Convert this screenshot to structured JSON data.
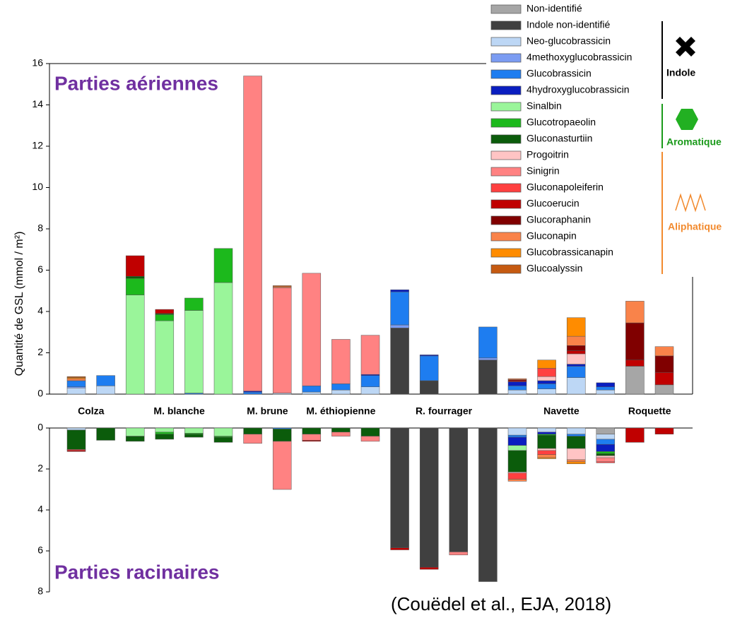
{
  "chart_data": {
    "type": "bar",
    "stacked": true,
    "ylabel": "Quantité de GSL (mmol / m²)",
    "annotations": [
      "Parties aériennes",
      "Parties racinaires",
      "(Couëdel et al., EJA, 2018)"
    ],
    "categories": [
      "Colza",
      null,
      "M. blanche",
      null,
      null,
      null,
      "M. brune",
      null,
      "M. éthiopienne",
      null,
      null,
      "R. fourrager",
      null,
      null,
      null,
      "Navette",
      null,
      null,
      null,
      "Roquette",
      null
    ],
    "ylim": [
      0,
      16
    ],
    "yticks": [
      0,
      2,
      4,
      6,
      8,
      10,
      12,
      14,
      16
    ],
    "ylim_root": [
      0,
      8
    ],
    "yticks_root": [
      0,
      2,
      4,
      6,
      8
    ],
    "legend_groups": [
      {
        "label": "Indole",
        "color": "#000000"
      },
      {
        "label": "Aromatique",
        "color": "#1a9a1a"
      },
      {
        "label": "Aliphatique",
        "color": "#f28a2e"
      }
    ],
    "series": [
      {
        "name": "Non-identifié",
        "color": "#a6a6a6",
        "values": [
          0,
          0,
          0,
          0,
          0,
          0,
          0,
          0,
          0,
          0,
          0,
          0,
          0,
          0,
          0,
          0,
          0,
          0,
          0,
          1.35,
          0.45
        ],
        "root_values": [
          0,
          0,
          0,
          0,
          0,
          0,
          0,
          0,
          0,
          0,
          0,
          0,
          0,
          0,
          0,
          0,
          0,
          0,
          0.3,
          0,
          0
        ]
      },
      {
        "name": "Indole non-identifié",
        "color": "#404040",
        "values": [
          0,
          0,
          0,
          0,
          0,
          0,
          0,
          0,
          0,
          0,
          0,
          3.2,
          0.65,
          0,
          1.65,
          0,
          0,
          0,
          0,
          0,
          0
        ],
        "root_values": [
          0,
          0,
          0,
          0,
          0,
          0,
          0,
          0,
          0,
          0,
          0,
          5.85,
          6.8,
          6.05,
          7.5,
          0,
          0,
          0,
          0,
          0,
          0
        ]
      },
      {
        "name": "Neo-glucobrassicin",
        "color": "#bdd7f5",
        "values": [
          0.3,
          0.4,
          0,
          0,
          0,
          0,
          0,
          0.05,
          0.1,
          0.2,
          0.35,
          0,
          0,
          0,
          0,
          0.2,
          0.25,
          0.8,
          0.2,
          0,
          0
        ],
        "root_values": [
          0.1,
          0,
          0,
          0,
          0,
          0,
          0,
          0,
          0,
          0,
          0,
          0,
          0,
          0,
          0,
          0.35,
          0.2,
          0.3,
          0.25,
          0,
          0
        ]
      },
      {
        "name": "4methoxyglucobrassicin",
        "color": "#7b9cf2",
        "values": [
          0.05,
          0,
          0,
          0,
          0,
          0,
          0,
          0,
          0,
          0,
          0,
          0.15,
          0,
          0,
          0.1,
          0,
          0,
          0,
          0,
          0,
          0
        ],
        "root_values": [
          0,
          0,
          0,
          0,
          0,
          0,
          0,
          0,
          0,
          0,
          0,
          0,
          0,
          0,
          0,
          0,
          0,
          0,
          0,
          0,
          0
        ]
      },
      {
        "name": "Glucobrassicin",
        "color": "#1e7df0",
        "values": [
          0.3,
          0.5,
          0,
          0,
          0.05,
          0,
          0.1,
          0,
          0.3,
          0.3,
          0.55,
          1.6,
          1.2,
          0,
          1.5,
          0.2,
          0.25,
          0.55,
          0.15,
          0,
          0
        ],
        "root_values": [
          0,
          0,
          0,
          0,
          0,
          0,
          0,
          0.05,
          0,
          0,
          0,
          0,
          0,
          0,
          0,
          0.1,
          0,
          0.1,
          0.25,
          0,
          0
        ]
      },
      {
        "name": "4hydroxyglucobrassicin",
        "color": "#0a1ec0",
        "values": [
          0,
          0,
          0,
          0,
          0,
          0,
          0.05,
          0,
          0,
          0,
          0.05,
          0.1,
          0.05,
          0,
          0,
          0.2,
          0.15,
          0.1,
          0.2,
          0,
          0
        ],
        "root_values": [
          0,
          0,
          0,
          0,
          0,
          0,
          0,
          0,
          0,
          0,
          0,
          0,
          0,
          0,
          0,
          0.4,
          0.1,
          0,
          0.35,
          0,
          0
        ]
      },
      {
        "name": "Sinalbin",
        "color": "#9af59a",
        "values": [
          0,
          0,
          4.8,
          3.55,
          4.0,
          5.4,
          0,
          0,
          0,
          0,
          0,
          0,
          0,
          0,
          0,
          0,
          0,
          0,
          0,
          0,
          0
        ],
        "root_values": [
          0,
          0,
          0.4,
          0.2,
          0.25,
          0.4,
          0,
          0,
          0,
          0,
          0,
          0,
          0,
          0,
          0,
          0.25,
          0,
          0,
          0,
          0,
          0
        ]
      },
      {
        "name": "Glucotropaeolin",
        "color": "#1cb91c",
        "values": [
          0,
          0,
          0.8,
          0.3,
          0.6,
          1.65,
          0,
          0,
          0,
          0,
          0,
          0,
          0,
          0,
          0,
          0,
          0,
          0,
          0,
          0,
          0
        ],
        "root_values": [
          0,
          0,
          0,
          0.1,
          0.05,
          0.05,
          0,
          0,
          0,
          0,
          0,
          0,
          0,
          0,
          0,
          0,
          0.05,
          0,
          0.1,
          0,
          0
        ]
      },
      {
        "name": "Gluconasturtiin",
        "color": "#0b5c0b",
        "values": [
          0,
          0,
          0.1,
          0.05,
          0,
          0,
          0,
          0,
          0,
          0,
          0,
          0,
          0,
          0,
          0,
          0,
          0,
          0,
          0,
          0,
          0
        ],
        "root_values": [
          0.95,
          0.6,
          0.25,
          0.25,
          0.15,
          0.25,
          0.3,
          0.6,
          0.3,
          0.2,
          0.4,
          0,
          0,
          0,
          0,
          1.05,
          0.65,
          0.6,
          0.1,
          0,
          0
        ]
      },
      {
        "name": "Progoitrin",
        "color": "#ffc4c4",
        "values": [
          0,
          0,
          0,
          0,
          0,
          0,
          0,
          0,
          0,
          0,
          0,
          0,
          0,
          0,
          0,
          0,
          0.2,
          0.5,
          0,
          0,
          0
        ],
        "root_values": [
          0,
          0,
          0,
          0,
          0,
          0,
          0,
          0,
          0,
          0,
          0,
          0,
          0,
          0,
          0,
          0.05,
          0.1,
          0.55,
          0.1,
          0,
          0
        ]
      },
      {
        "name": "Sinigrin",
        "color": "#ff8282",
        "values": [
          0,
          0,
          0,
          0,
          0,
          0,
          15.25,
          5.1,
          5.45,
          2.15,
          1.9,
          0,
          0,
          0,
          0,
          0,
          0,
          0,
          0,
          0,
          0
        ],
        "root_values": [
          0,
          0,
          0,
          0,
          0,
          0,
          0.45,
          2.35,
          0.3,
          0.2,
          0.25,
          0,
          0,
          0.15,
          0,
          0,
          0,
          0,
          0.2,
          0,
          0
        ]
      },
      {
        "name": "Gluconapoleiferin",
        "color": "#ff4040",
        "values": [
          0,
          0,
          0,
          0,
          0,
          0,
          0,
          0,
          0,
          0,
          0,
          0,
          0,
          0,
          0,
          0,
          0.4,
          0,
          0,
          0,
          0
        ],
        "root_values": [
          0.05,
          0,
          0,
          0,
          0,
          0,
          0,
          0,
          0,
          0,
          0,
          0,
          0,
          0,
          0,
          0.3,
          0.2,
          0,
          0.05,
          0,
          0
        ]
      },
      {
        "name": "Glucoerucin",
        "color": "#c00000",
        "values": [
          0,
          0,
          1.0,
          0.2,
          0,
          0,
          0,
          0,
          0,
          0,
          0,
          0,
          0,
          0,
          0,
          0.05,
          0,
          0.15,
          0,
          0.3,
          0.6
        ],
        "root_values": [
          0.05,
          0,
          0,
          0,
          0,
          0,
          0,
          0,
          0.05,
          0,
          0,
          0.1,
          0.1,
          0,
          0,
          0,
          0,
          0,
          0,
          0.7,
          0.3
        ]
      },
      {
        "name": "Glucoraphanin",
        "color": "#800000",
        "values": [
          0,
          0,
          0,
          0,
          0,
          0,
          0,
          0,
          0,
          0,
          0,
          0,
          0,
          0,
          0,
          0.05,
          0,
          0.25,
          0,
          1.8,
          0.8
        ],
        "root_values": [
          0,
          0,
          0,
          0,
          0,
          0,
          0,
          0,
          0,
          0,
          0,
          0,
          0,
          0,
          0,
          0,
          0,
          0,
          0,
          0,
          0
        ]
      },
      {
        "name": "Gluconapin",
        "color": "#f9834a",
        "values": [
          0.1,
          0,
          0,
          0,
          0,
          0,
          0,
          0.05,
          0,
          0,
          0,
          0,
          0,
          0,
          0,
          0.05,
          0,
          0.45,
          0,
          1.05,
          0.45
        ],
        "root_values": [
          0,
          0,
          0,
          0,
          0,
          0,
          0,
          0,
          0,
          0,
          0,
          0,
          0,
          0,
          0,
          0.1,
          0.15,
          0.1,
          0,
          0,
          0
        ]
      },
      {
        "name": "Glucobrassicanapin",
        "color": "#ff8c00",
        "values": [
          0.05,
          0,
          0,
          0,
          0,
          0,
          0,
          0,
          0,
          0,
          0,
          0,
          0,
          0,
          0,
          0,
          0.4,
          0.9,
          0,
          0,
          0
        ],
        "root_values": [
          0,
          0,
          0,
          0,
          0,
          0,
          0,
          0,
          0,
          0,
          0,
          0,
          0,
          0,
          0,
          0,
          0.05,
          0.1,
          0,
          0,
          0
        ]
      },
      {
        "name": "Glucoalyssin",
        "color": "#c55a11",
        "values": [
          0.05,
          0,
          0,
          0,
          0,
          0,
          0,
          0.05,
          0,
          0,
          0,
          0,
          0,
          0,
          0,
          0,
          0,
          0,
          0,
          0,
          0
        ],
        "root_values": [
          0,
          0,
          0,
          0,
          0,
          0,
          0,
          0,
          0,
          0,
          0,
          0,
          0,
          0,
          0,
          0,
          0,
          0,
          0,
          0,
          0
        ]
      }
    ]
  }
}
